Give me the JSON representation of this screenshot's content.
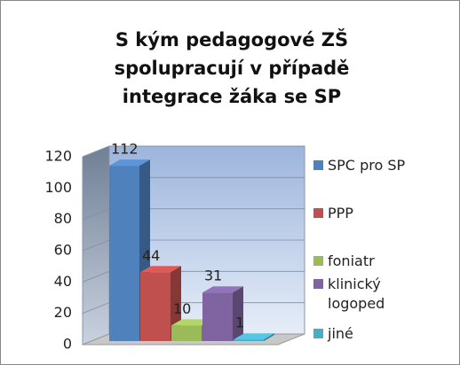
{
  "chart_data": {
    "type": "bar3d",
    "title": "S kým pedagogové ZŠ spolupracují v případě integrace žáka se SP",
    "series": [
      {
        "name": "SPC pro SP",
        "color": "#4f81bd",
        "values": [
          112
        ]
      },
      {
        "name": "PPP",
        "color": "#c0504d",
        "values": [
          44
        ]
      },
      {
        "name": "foniatr",
        "color": "#9bbb59",
        "values": [
          10
        ]
      },
      {
        "name": "klinický logoped",
        "color": "#8064a2",
        "values": [
          31
        ]
      },
      {
        "name": "jiné",
        "color": "#4bacc6",
        "values": [
          1
        ]
      }
    ],
    "ylim": [
      0,
      120
    ],
    "yticks": [
      0,
      20,
      40,
      60,
      80,
      100,
      120
    ],
    "grid": true,
    "legend": "right"
  }
}
